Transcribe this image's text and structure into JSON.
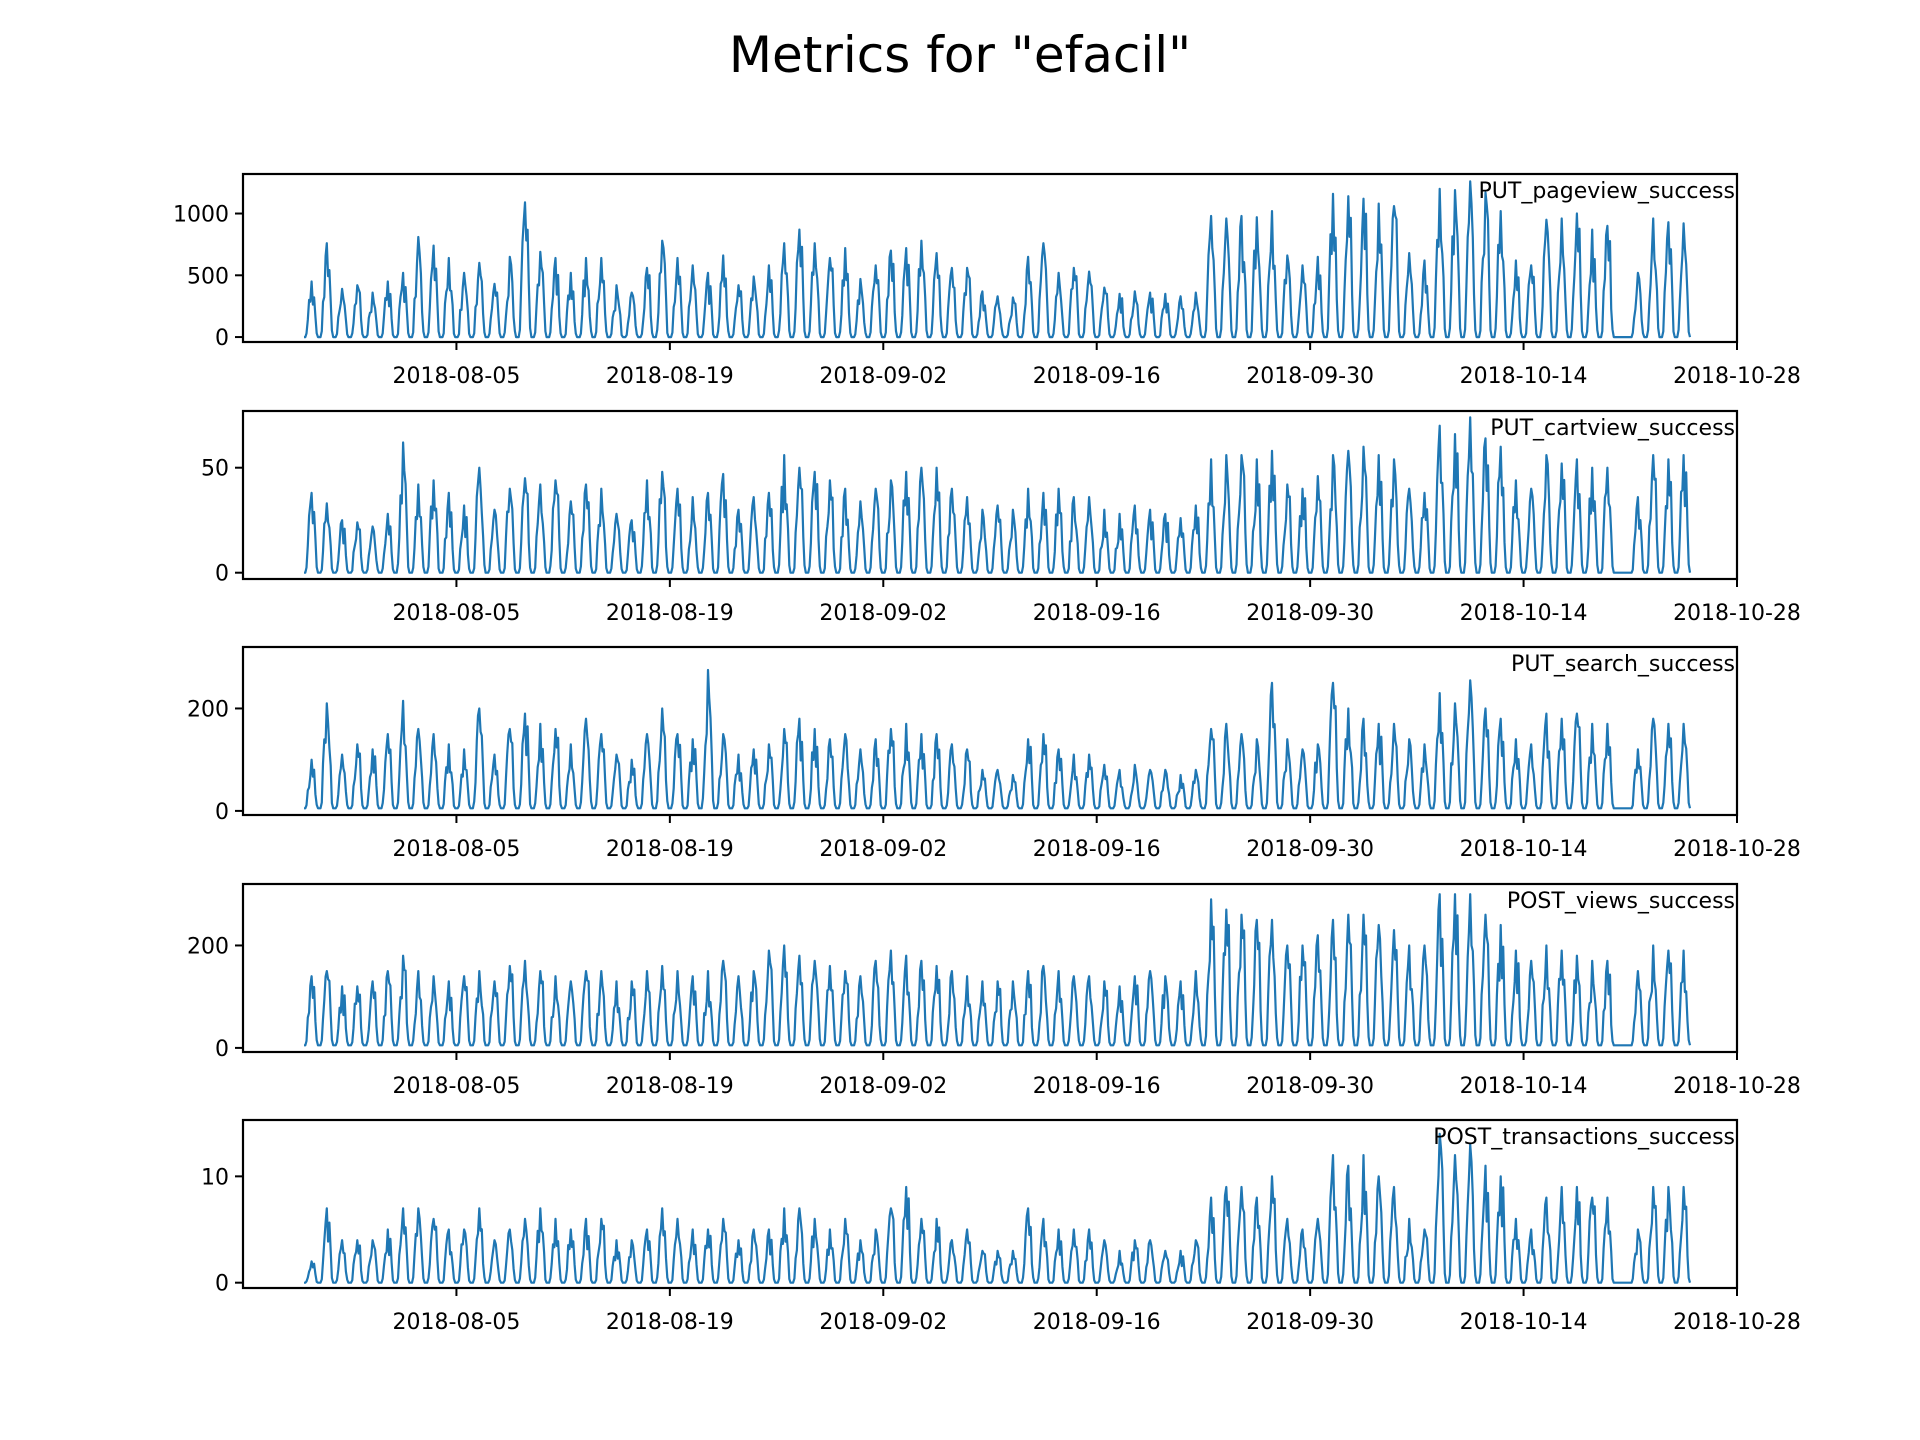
{
  "figure_title": "Metrics for \"efacil\"",
  "colors": {
    "series": "#1f77b4",
    "axes": "#000000",
    "background": "#ffffff"
  },
  "chart_data": [
    {
      "type": "line",
      "label": "PUT_pageview_success",
      "x_range": [
        "2018-07-22",
        "2018-10-28"
      ],
      "x_start": "2018-07-26",
      "x_end": "2018-10-25",
      "x_ticks": [
        "2018-08-05",
        "2018-08-19",
        "2018-09-02",
        "2018-09-16",
        "2018-09-30",
        "2018-10-14",
        "2018-10-28"
      ],
      "y_ticks": [
        0,
        500,
        1000
      ],
      "ylim": [
        -40,
        1320
      ],
      "daily_peaks": [
        450,
        760,
        390,
        420,
        360,
        450,
        520,
        810,
        740,
        640,
        520,
        600,
        430,
        650,
        1090,
        690,
        640,
        520,
        640,
        640,
        420,
        360,
        560,
        780,
        640,
        580,
        520,
        660,
        420,
        490,
        580,
        760,
        870,
        760,
        640,
        720,
        470,
        580,
        700,
        720,
        780,
        680,
        560,
        560,
        370,
        330,
        320,
        650,
        760,
        520,
        560,
        530,
        400,
        350,
        370,
        360,
        350,
        330,
        360,
        980,
        960,
        980,
        970,
        1020,
        660,
        580,
        650,
        1160,
        1140,
        1120,
        1080,
        1060,
        680,
        620,
        1200,
        1190,
        1260,
        1170,
        1020,
        620,
        580,
        950,
        960,
        1000,
        870,
        900,
        600,
        520,
        960,
        930,
        920,
        900,
        500,
        460,
        1020,
        960,
        980,
        980,
        700,
        1000,
        1020
      ],
      "daily_lows": [
        0,
        0,
        0,
        0,
        0,
        0,
        0,
        0,
        0,
        0,
        0,
        0,
        0,
        0,
        0,
        0,
        0,
        0,
        0,
        0,
        0,
        0,
        0,
        0,
        0,
        0,
        0,
        0,
        0,
        0,
        0,
        0,
        0,
        0,
        0,
        0,
        0,
        0,
        0,
        0,
        0,
        0,
        0,
        0,
        0,
        0,
        0,
        0,
        0,
        0,
        0,
        0,
        0,
        0,
        0,
        0,
        0,
        0,
        0,
        0,
        0,
        0,
        0,
        0,
        0,
        0,
        0,
        0,
        0,
        0,
        0,
        0,
        0,
        0,
        0,
        0,
        0,
        0,
        0,
        0,
        0,
        0,
        0,
        0,
        0,
        0,
        0,
        0,
        0,
        0,
        0,
        0,
        0,
        0,
        0,
        0,
        0,
        0,
        0,
        0,
        0,
        0
      ]
    },
    {
      "type": "line",
      "label": "PUT_cartview_success",
      "x_range": [
        "2018-07-22",
        "2018-10-28"
      ],
      "x_start": "2018-07-26",
      "x_end": "2018-10-25",
      "x_ticks": [
        "2018-08-05",
        "2018-08-19",
        "2018-09-02",
        "2018-09-16",
        "2018-09-30",
        "2018-10-14",
        "2018-10-28"
      ],
      "y_ticks": [
        0,
        50
      ],
      "ylim": [
        -3,
        77
      ],
      "daily_peaks": [
        38,
        33,
        25,
        24,
        22,
        28,
        62,
        42,
        44,
        38,
        32,
        50,
        30,
        40,
        45,
        42,
        44,
        34,
        42,
        40,
        28,
        25,
        44,
        48,
        40,
        36,
        38,
        47,
        30,
        36,
        38,
        56,
        50,
        48,
        44,
        40,
        34,
        40,
        44,
        48,
        50,
        50,
        40,
        36,
        30,
        32,
        30,
        40,
        38,
        40,
        36,
        36,
        30,
        28,
        32,
        30,
        28,
        26,
        32,
        54,
        56,
        56,
        54,
        58,
        42,
        40,
        46,
        56,
        58,
        60,
        56,
        54,
        40,
        38,
        70,
        66,
        74,
        64,
        60,
        44,
        40,
        56,
        52,
        54,
        50,
        50,
        38,
        36,
        56,
        54,
        56,
        52,
        36,
        34,
        56,
        52,
        56,
        52,
        42,
        60,
        52
      ],
      "daily_lows": [
        0,
        0,
        0,
        0,
        0,
        0,
        0,
        0,
        0,
        0,
        0,
        0,
        0,
        0,
        0,
        0,
        0,
        0,
        0,
        0,
        0,
        0,
        0,
        0,
        0,
        0,
        0,
        0,
        0,
        0,
        0,
        0,
        0,
        0,
        0,
        0,
        0,
        0,
        0,
        0,
        0,
        0,
        0,
        0,
        0,
        0,
        0,
        0,
        0,
        0,
        0,
        0,
        0,
        0,
        0,
        0,
        0,
        0,
        0,
        0,
        0,
        0,
        0,
        0,
        0,
        0,
        0,
        0,
        0,
        0,
        0,
        0,
        0,
        0,
        0,
        0,
        0,
        0,
        0,
        0,
        0,
        0,
        0,
        0,
        0,
        0,
        0,
        0,
        0,
        0,
        0,
        0,
        0,
        0,
        0,
        0,
        0,
        0,
        0,
        0,
        0,
        0
      ]
    },
    {
      "type": "line",
      "label": "PUT_search_success",
      "x_range": [
        "2018-07-22",
        "2018-10-28"
      ],
      "x_start": "2018-07-26",
      "x_end": "2018-10-25",
      "x_ticks": [
        "2018-08-05",
        "2018-08-19",
        "2018-09-02",
        "2018-09-16",
        "2018-09-30",
        "2018-10-14",
        "2018-10-28"
      ],
      "y_ticks": [
        0,
        200
      ],
      "ylim": [
        -8,
        320
      ],
      "daily_peaks": [
        100,
        210,
        110,
        130,
        120,
        150,
        215,
        160,
        150,
        130,
        120,
        200,
        110,
        160,
        190,
        170,
        160,
        130,
        180,
        150,
        110,
        100,
        150,
        200,
        150,
        140,
        275,
        150,
        110,
        120,
        130,
        160,
        180,
        160,
        140,
        150,
        120,
        140,
        160,
        170,
        150,
        150,
        130,
        120,
        80,
        80,
        70,
        140,
        150,
        120,
        110,
        110,
        90,
        80,
        90,
        80,
        80,
        70,
        80,
        160,
        170,
        150,
        140,
        250,
        140,
        120,
        130,
        250,
        200,
        180,
        170,
        170,
        140,
        130,
        230,
        210,
        255,
        200,
        180,
        140,
        130,
        190,
        180,
        190,
        170,
        170,
        130,
        120,
        180,
        170,
        170,
        160,
        300,
        170,
        170,
        160,
        170,
        130,
        150,
        210,
        210
      ],
      "daily_lows": [
        5,
        5,
        5,
        5,
        5,
        5,
        5,
        5,
        5,
        5,
        5,
        5,
        5,
        5,
        5,
        5,
        5,
        5,
        5,
        5,
        5,
        5,
        5,
        5,
        5,
        5,
        5,
        5,
        5,
        5,
        5,
        5,
        5,
        5,
        5,
        5,
        5,
        5,
        5,
        5,
        5,
        5,
        5,
        5,
        5,
        5,
        5,
        5,
        5,
        5,
        5,
        5,
        5,
        5,
        5,
        5,
        5,
        5,
        5,
        5,
        5,
        5,
        5,
        5,
        5,
        5,
        5,
        5,
        5,
        5,
        5,
        5,
        5,
        5,
        5,
        5,
        5,
        5,
        5,
        5,
        5,
        5,
        5,
        5,
        5,
        5,
        5,
        5,
        5,
        5,
        5,
        5,
        5,
        5,
        5,
        5,
        5,
        5,
        5,
        5,
        5,
        5
      ]
    },
    {
      "type": "line",
      "label": "POST_views_success",
      "x_range": [
        "2018-07-22",
        "2018-10-28"
      ],
      "x_start": "2018-07-26",
      "x_end": "2018-10-25",
      "x_ticks": [
        "2018-08-05",
        "2018-08-19",
        "2018-09-02",
        "2018-09-16",
        "2018-09-30",
        "2018-10-14",
        "2018-10-28"
      ],
      "y_ticks": [
        0,
        200
      ],
      "ylim": [
        -8,
        320
      ],
      "daily_peaks": [
        140,
        150,
        120,
        120,
        130,
        150,
        180,
        150,
        140,
        130,
        140,
        150,
        130,
        160,
        170,
        150,
        140,
        130,
        150,
        150,
        130,
        130,
        150,
        160,
        150,
        140,
        150,
        170,
        140,
        150,
        190,
        200,
        180,
        170,
        160,
        150,
        140,
        170,
        190,
        180,
        170,
        160,
        150,
        140,
        130,
        130,
        130,
        150,
        160,
        150,
        140,
        140,
        130,
        120,
        140,
        150,
        140,
        130,
        150,
        290,
        270,
        260,
        250,
        250,
        200,
        200,
        220,
        250,
        260,
        260,
        240,
        230,
        200,
        200,
        300,
        300,
        300,
        260,
        240,
        190,
        170,
        200,
        190,
        180,
        170,
        170,
        150,
        150,
        200,
        190,
        190,
        180,
        200,
        160,
        200,
        210,
        190,
        210,
        170,
        230,
        210
      ],
      "daily_lows": [
        5,
        5,
        5,
        5,
        5,
        5,
        5,
        5,
        5,
        5,
        5,
        5,
        5,
        5,
        5,
        5,
        5,
        5,
        5,
        5,
        5,
        5,
        5,
        5,
        5,
        5,
        5,
        5,
        5,
        5,
        5,
        5,
        5,
        5,
        5,
        5,
        5,
        5,
        5,
        5,
        5,
        5,
        5,
        5,
        5,
        5,
        5,
        5,
        5,
        5,
        5,
        5,
        5,
        5,
        5,
        5,
        5,
        5,
        5,
        5,
        5,
        5,
        5,
        5,
        5,
        5,
        5,
        5,
        5,
        5,
        5,
        5,
        5,
        5,
        5,
        5,
        5,
        5,
        5,
        5,
        5,
        5,
        5,
        5,
        5,
        5,
        5,
        5,
        5,
        5,
        5,
        5,
        5,
        5,
        5,
        5,
        5,
        5,
        5,
        5,
        5,
        5
      ]
    },
    {
      "type": "line",
      "label": "POST_transactions_success",
      "x_range": [
        "2018-07-22",
        "2018-10-28"
      ],
      "x_start": "2018-07-26",
      "x_end": "2018-10-25",
      "x_ticks": [
        "2018-08-05",
        "2018-08-19",
        "2018-09-02",
        "2018-09-16",
        "2018-09-30",
        "2018-10-14",
        "2018-10-28"
      ],
      "y_ticks": [
        0,
        10
      ],
      "ylim": [
        -0.5,
        15.3
      ],
      "daily_peaks": [
        2,
        7,
        4,
        4,
        4,
        5,
        7,
        7,
        6,
        5,
        5,
        7,
        4,
        5,
        6,
        7,
        6,
        5,
        6,
        6,
        4,
        4,
        5,
        7,
        6,
        5,
        5,
        6,
        4,
        5,
        5,
        7,
        7,
        6,
        5,
        6,
        4,
        5,
        7,
        9,
        6,
        6,
        4,
        5,
        3,
        3,
        3,
        7,
        6,
        5,
        5,
        5,
        4,
        3,
        4,
        4,
        3,
        3,
        4,
        8,
        9,
        9,
        8,
        10,
        6,
        5,
        6,
        12,
        11,
        12,
        10,
        9,
        6,
        5,
        14,
        12,
        13,
        11,
        10,
        6,
        5,
        8,
        9,
        9,
        8,
        8,
        5,
        5,
        9,
        9,
        9,
        8,
        5,
        4,
        9,
        8,
        9,
        8,
        5,
        8,
        8
      ],
      "daily_lows": [
        0,
        0,
        0,
        0,
        0,
        0,
        0,
        0,
        0,
        0,
        0,
        0,
        0,
        0,
        0,
        0,
        0,
        0,
        0,
        0,
        0,
        0,
        0,
        0,
        0,
        0,
        0,
        0,
        0,
        0,
        0,
        0,
        0,
        0,
        0,
        0,
        0,
        0,
        0,
        0,
        0,
        0,
        0,
        0,
        0,
        0,
        0,
        0,
        0,
        0,
        0,
        0,
        0,
        0,
        0,
        0,
        0,
        0,
        0,
        0,
        0,
        0,
        0,
        0,
        0,
        0,
        0,
        0,
        0,
        0,
        0,
        0,
        0,
        0,
        0,
        0,
        0,
        0,
        0,
        0,
        0,
        0,
        0,
        0,
        0,
        0,
        0,
        0,
        0,
        0,
        0,
        0,
        0,
        0,
        0,
        0,
        0,
        0,
        0,
        0,
        0,
        0
      ]
    }
  ]
}
